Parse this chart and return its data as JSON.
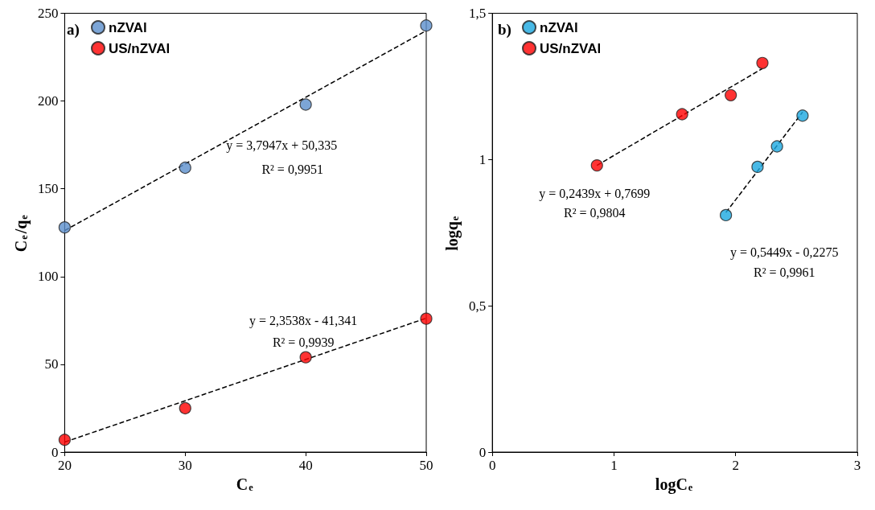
{
  "chart_data": [
    {
      "type": "scatter",
      "title": "a)",
      "xlabel": "C$_{e}$",
      "ylabel": "C$_{e}$/q$_{e}$",
      "xlim": [
        20,
        50
      ],
      "xticks": [
        20,
        30,
        40,
        50
      ],
      "ylim": [
        0,
        250
      ],
      "yticks": [
        0,
        50,
        100,
        150,
        200,
        250
      ],
      "grid": false,
      "legend": "top left",
      "series": [
        {
          "name": "nZVAl",
          "color": "#5b8fcc",
          "marker": "circle",
          "x": [
            20,
            30,
            40,
            50
          ],
          "values": [
            128,
            162,
            198,
            243
          ]
        },
        {
          "name": "US/nZVAl",
          "color": "#ff0000",
          "marker": "circle",
          "x": [
            20,
            30,
            40,
            50
          ],
          "values": [
            7,
            25,
            54,
            76
          ]
        },
        {
          "type": "line",
          "color": "#000000",
          "marker": "none",
          "line_style": "dashed",
          "x": [
            20,
            50
          ],
          "values": [
            126.2,
            240.1
          ]
        },
        {
          "type": "line",
          "color": "#000000",
          "marker": "none",
          "line_style": "dashed",
          "x": [
            20,
            50
          ],
          "values": [
            5.7,
            76.3
          ]
        }
      ],
      "annotations": [
        "y = 3,7947x + 50,335",
        "R² = 0,9951",
        "y = 2,3538x - 41,341",
        "R² = 0,9939"
      ]
    },
    {
      "type": "scatter",
      "title": "b)",
      "xlabel": "logC$_{e}$",
      "ylabel": "logq$_{e}$",
      "xlim": [
        0,
        3
      ],
      "xticks": [
        0,
        1,
        2,
        3
      ],
      "ylim": [
        0,
        1.5
      ],
      "yticks": [
        0,
        {
          "value": 0.5,
          "label": "0,5"
        },
        1,
        {
          "value": 1.5,
          "label": "1,5"
        }
      ],
      "grid": false,
      "legend": "top left",
      "series": [
        {
          "name": "nZVAl",
          "color": "#1aa8e0",
          "marker": "circle",
          "x": [
            1.92,
            2.18,
            2.34,
            2.55
          ],
          "values": [
            0.81,
            0.975,
            1.045,
            1.15
          ]
        },
        {
          "name": "US/nZVAl",
          "color": "#ff0000",
          "marker": "circle",
          "x": [
            0.86,
            1.56,
            1.96,
            2.22
          ],
          "values": [
            0.98,
            1.155,
            1.22,
            1.33
          ]
        },
        {
          "type": "line",
          "color": "#000000",
          "marker": "none",
          "line_style": "dashed",
          "x": [
            0.86,
            2.22
          ],
          "values": [
            0.98,
            1.311
          ]
        },
        {
          "type": "line",
          "color": "#000000",
          "marker": "none",
          "line_style": "dashed",
          "x": [
            1.92,
            2.55
          ],
          "values": [
            0.819,
            1.162
          ]
        }
      ],
      "annotations": [
        "y = 0,2439x + 0,7699",
        "R² = 0,9804",
        "y = 0,5449x - 0,2275",
        "R² = 0,9961"
      ]
    }
  ]
}
